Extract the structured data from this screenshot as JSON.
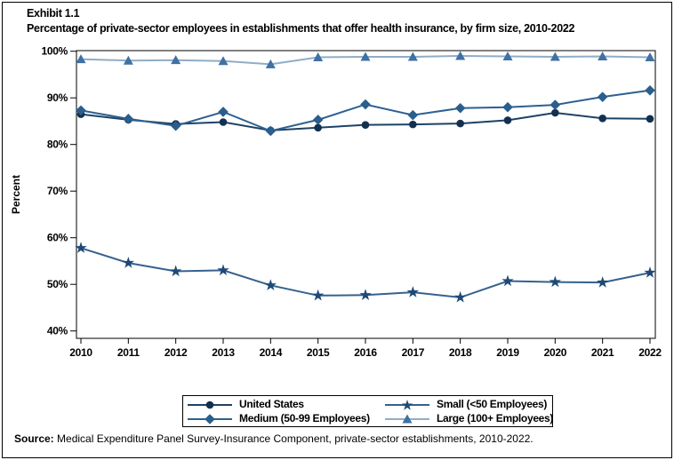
{
  "header": {
    "exhibit": "Exhibit 1.1",
    "title": "Percentage of private-sector employees in establishments that offer health insurance, by firm size, 2010-2022"
  },
  "source": {
    "label": "Source:",
    "text": " Medical Expenditure Panel Survey-Insurance Component, private-sector establishments, 2010-2022."
  },
  "chart_data": {
    "type": "line",
    "title": "Percentage of private-sector employees in establishments that offer health insurance, by firm size, 2010-2022",
    "xlabel": "",
    "ylabel": "Percent",
    "x": [
      2010,
      2011,
      2012,
      2013,
      2014,
      2015,
      2016,
      2017,
      2018,
      2019,
      2020,
      2021,
      2022
    ],
    "yticks": [
      40,
      50,
      60,
      70,
      80,
      90,
      100
    ],
    "ylim": [
      40,
      100
    ],
    "ytick_suffix": "%",
    "grid": false,
    "legend_position": "bottom",
    "series": [
      {
        "name": "United States",
        "marker": "circle",
        "color": "#12304f",
        "line_color": "#1d4266",
        "values": [
          86.5,
          85.3,
          84.4,
          84.8,
          83.0,
          83.6,
          84.2,
          84.3,
          84.5,
          85.2,
          86.8,
          85.6,
          85.5
        ]
      },
      {
        "name": "Medium (50-99 Employees)",
        "marker": "diamond",
        "color": "#2a5e8c",
        "line_color": "#2e6092",
        "values": [
          87.3,
          85.5,
          84.0,
          87.0,
          82.9,
          85.3,
          88.6,
          86.3,
          87.8,
          88.0,
          88.5,
          90.2,
          91.6
        ]
      },
      {
        "name": "Small (<50 Employees)",
        "marker": "star",
        "color": "#1e4976",
        "line_color": "#35618f",
        "values": [
          57.8,
          54.6,
          52.8,
          53.0,
          49.8,
          47.6,
          47.7,
          48.3,
          47.2,
          50.7,
          50.5,
          50.4,
          52.5
        ]
      },
      {
        "name": "Large (100+ Employees)",
        "marker": "triangle",
        "color": "#3f71a3",
        "line_color": "#8fadc7",
        "values": [
          98.3,
          98.0,
          98.1,
          97.9,
          97.2,
          98.7,
          98.8,
          98.8,
          99.0,
          98.9,
          98.8,
          98.9,
          98.7
        ]
      }
    ],
    "legend_order": [
      0,
      2,
      1,
      3
    ]
  }
}
